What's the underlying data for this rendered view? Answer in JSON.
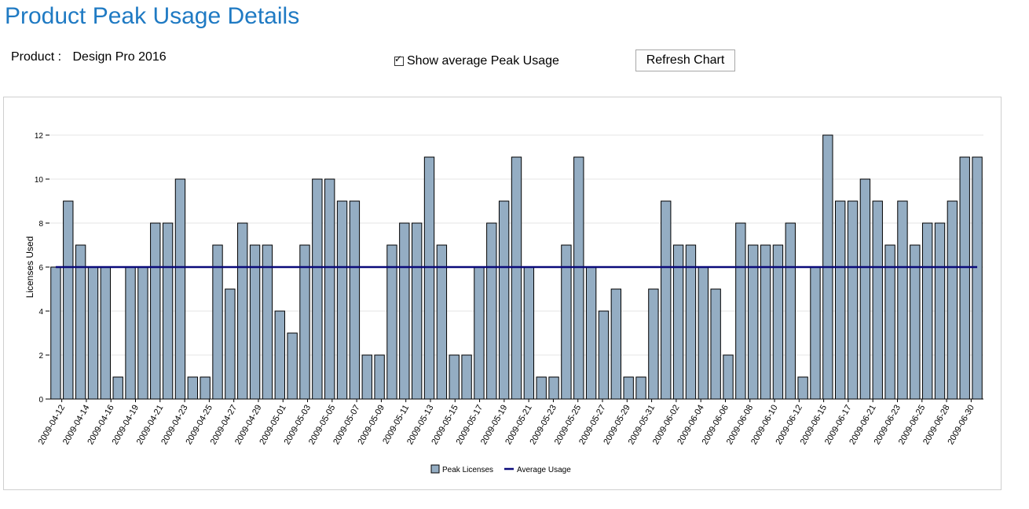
{
  "header": {
    "title": "Product Peak Usage Details"
  },
  "product": {
    "label": "Product :",
    "value": "Design Pro 2016"
  },
  "controls": {
    "show_average_label": "Show average Peak Usage",
    "show_average_checked": true,
    "refresh_label": "Refresh Chart"
  },
  "colors": {
    "title": "#1f7ac3",
    "bar_fill": "#94adc3",
    "bar_stroke": "#000000",
    "average_line": "#0a0a7a",
    "grid": "#e6e6e6"
  },
  "chart_data": {
    "type": "bar",
    "title": "",
    "xlabel": "",
    "ylabel": "Licenses Used",
    "ylim": [
      0,
      12
    ],
    "y_ticks": [
      0,
      2,
      4,
      6,
      8,
      10,
      12
    ],
    "grid": true,
    "legend_position": "bottom",
    "x_tick_labels": [
      "2009-04-12",
      "2009-04-14",
      "2009-04-16",
      "2009-04-19",
      "2009-04-21",
      "2009-04-23",
      "2009-04-25",
      "2009-04-27",
      "2009-04-29",
      "2009-05-01",
      "2009-05-03",
      "2009-05-05",
      "2009-05-07",
      "2009-05-09",
      "2009-05-11",
      "2009-05-13",
      "2009-05-15",
      "2009-05-17",
      "2009-05-19",
      "2009-05-21",
      "2009-05-23",
      "2009-05-25",
      "2009-05-27",
      "2009-05-29",
      "2009-05-31",
      "2009-06-02",
      "2009-06-04",
      "2009-06-06",
      "2009-06-08",
      "2009-06-10",
      "2009-06-12",
      "2009-06-15",
      "2009-06-17",
      "2009-06-21",
      "2009-06-23",
      "2009-06-25",
      "2009-06-28",
      "2009-06-30"
    ],
    "series": [
      {
        "name": "Peak Licenses",
        "type": "bar",
        "values": [
          6,
          9,
          7,
          6,
          6,
          1,
          6,
          6,
          8,
          8,
          10,
          1,
          1,
          7,
          5,
          8,
          7,
          7,
          4,
          3,
          7,
          10,
          10,
          9,
          9,
          2,
          2,
          7,
          8,
          8,
          11,
          7,
          2,
          2,
          6,
          8,
          9,
          11,
          6,
          1,
          1,
          7,
          11,
          6,
          4,
          5,
          1,
          1,
          5,
          9,
          7,
          7,
          6,
          5,
          2,
          8,
          7,
          7,
          7,
          8,
          1,
          6,
          12,
          9,
          9,
          10,
          9,
          7,
          9,
          7,
          8,
          8,
          9,
          11,
          11
        ]
      },
      {
        "name": "Average Usage",
        "type": "line",
        "values": [
          6
        ]
      }
    ]
  }
}
